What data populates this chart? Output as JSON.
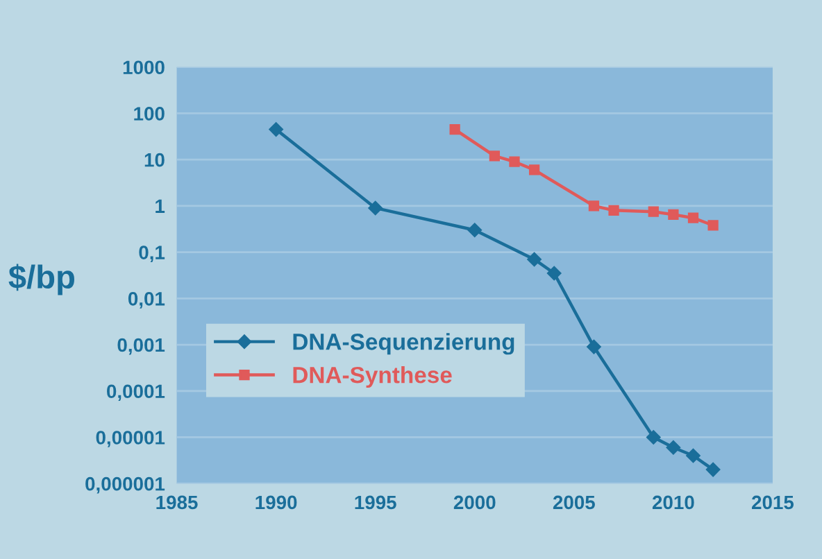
{
  "chart_data": {
    "type": "line",
    "ylabel": "$/bp",
    "log": "y",
    "grid": "y",
    "legend": "lower left",
    "line_style": "solid",
    "xlim": [
      1985,
      2015
    ],
    "xticks": [
      1985,
      1990,
      1995,
      2000,
      2005,
      2010,
      2015
    ],
    "ylim": [
      1e-06,
      1000
    ],
    "yticks": [
      {
        "value": 1e-06,
        "label": "0,000001"
      },
      {
        "value": 1e-05,
        "label": "0,00001"
      },
      {
        "value": 0.0001,
        "label": "0,0001"
      },
      {
        "value": 0.001,
        "label": "0,001"
      },
      {
        "value": 0.01,
        "label": "0,01"
      },
      {
        "value": 0.1,
        "label": "0,1"
      },
      1,
      10,
      100,
      1000
    ],
    "series": [
      {
        "name": "DNA-Sequenzierung",
        "color": "#1a6e9a",
        "marker": "diamond",
        "x": [
          1990,
          1995,
          2000,
          2003,
          2004,
          2006,
          2009,
          2010,
          2011,
          2012
        ],
        "values": [
          45,
          0.9,
          0.3,
          0.07,
          0.035,
          0.0009,
          1e-05,
          6e-06,
          4e-06,
          2e-06
        ]
      },
      {
        "name": "DNA-Synthese",
        "color": "#e05a5a",
        "marker": "square",
        "x": [
          1999,
          2001,
          2002,
          2003,
          2006,
          2007,
          2009,
          2010,
          2011,
          2012
        ],
        "values": [
          45,
          12,
          9,
          6,
          1.0,
          0.8,
          0.75,
          0.65,
          0.55,
          0.38
        ]
      }
    ]
  }
}
